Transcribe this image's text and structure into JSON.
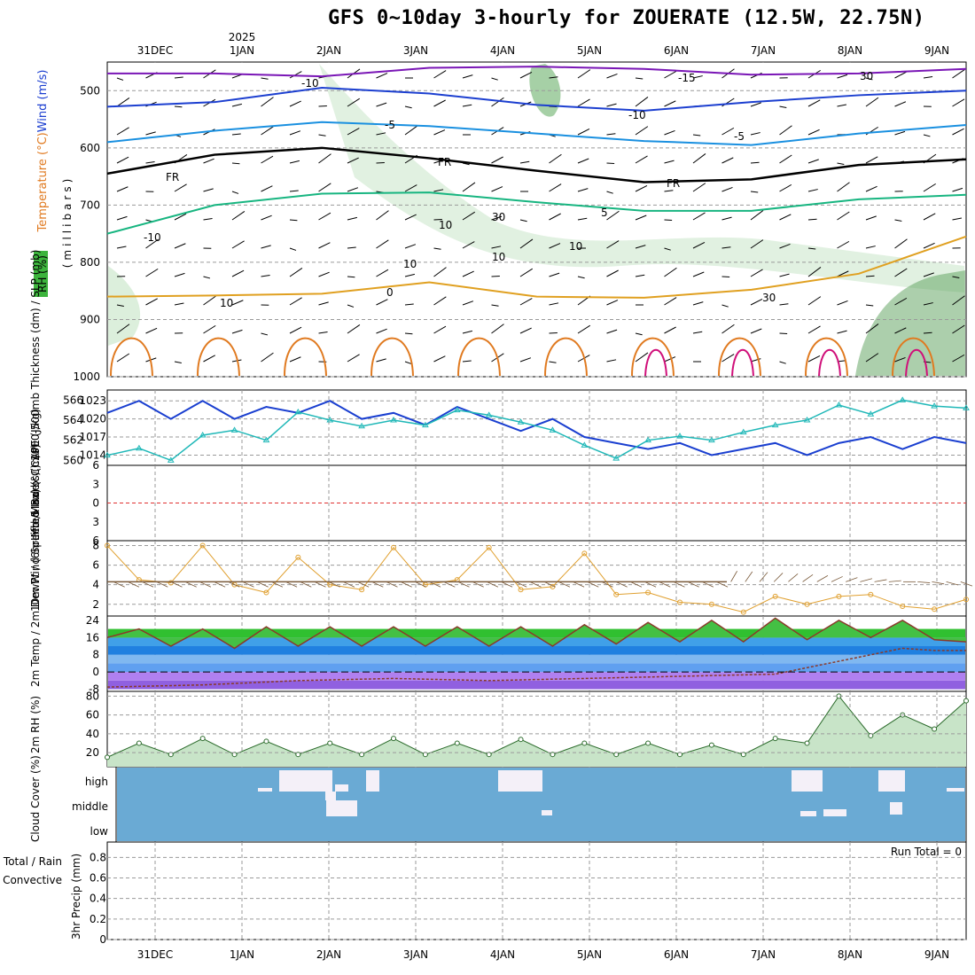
{
  "title": "GFS 0~10day 3-hourly for ZOUERATE (12.5W, 22.75N)",
  "year_label": "2025",
  "run_total": "Run Total = 0",
  "date_labels": [
    "31DEC",
    "1JAN",
    "2JAN",
    "3JAN",
    "4JAN",
    "5JAN",
    "6JAN",
    "7JAN",
    "8JAN",
    "9JAN"
  ],
  "colors": {
    "temp_minus15": "#7a16b6",
    "temp_minus10": "#1c3fd0",
    "temp_minus5": "#1a90e0",
    "temp_freezing": "#000000",
    "temp_5": "#17b580",
    "temp_10": "#e0a020",
    "temp_10b": "#e07a20",
    "temp_20": "#d0107a",
    "rh_fill": "#a8d8a8",
    "slp": "#1a3fd0",
    "thickness": "#20b8b8",
    "lifted_index": "#e03030",
    "wind_speed": "#e0a030",
    "cloud_bg": "#6aaad4",
    "cloud_fill": "#f4f0f8",
    "rh2m": "#20c020"
  },
  "chart_data": [
    {
      "type": "line",
      "panel": "upper_air",
      "ylabel_parts": [
        "Temperature (°C)",
        "Wind (m/s)",
        "RH (%)"
      ],
      "units": "(millibars)",
      "y_ticks": [
        500,
        600,
        700,
        800,
        900,
        1000
      ],
      "ylim": [
        450,
        1000
      ],
      "contour_labels": [
        "-15",
        "-10",
        "-10",
        "-5",
        "-5",
        "FR",
        "FR",
        "FR",
        "5",
        "10",
        "10",
        "10",
        "-10",
        "30",
        "30",
        "30",
        "10",
        "0",
        "10"
      ],
      "series": [
        {
          "name": "-15",
          "x": [
            0,
            10,
            20,
            30,
            40,
            50,
            60,
            70,
            80
          ],
          "y": [
            470,
            470,
            475,
            460,
            458,
            462,
            472,
            470,
            462
          ]
        },
        {
          "name": "-10",
          "x": [
            0,
            10,
            20,
            30,
            40,
            50,
            60,
            70,
            80
          ],
          "y": [
            528,
            520,
            495,
            505,
            525,
            535,
            520,
            508,
            500
          ]
        },
        {
          "name": "-5",
          "x": [
            0,
            10,
            20,
            30,
            40,
            50,
            60,
            70,
            80
          ],
          "y": [
            590,
            570,
            555,
            562,
            575,
            588,
            595,
            575,
            560
          ]
        },
        {
          "name": "FR",
          "x": [
            0,
            10,
            20,
            30,
            40,
            50,
            60,
            70,
            80
          ],
          "y": [
            645,
            612,
            600,
            618,
            640,
            660,
            655,
            630,
            620
          ]
        },
        {
          "name": "5",
          "x": [
            0,
            10,
            20,
            30,
            40,
            50,
            60,
            70,
            80
          ],
          "y": [
            750,
            700,
            680,
            678,
            695,
            710,
            710,
            690,
            682
          ]
        },
        {
          "name": "10",
          "x": [
            0,
            10,
            20,
            30,
            40,
            50,
            60,
            70,
            80
          ],
          "y": [
            860,
            858,
            855,
            835,
            860,
            862,
            848,
            820,
            755
          ]
        }
      ]
    },
    {
      "type": "line",
      "panel": "slp_thickness",
      "ylabel": "1000-500mb Thickness (dm) / SLP (mb)",
      "y_ticks_left": [
        560,
        562,
        564,
        566
      ],
      "y_ticks_right": [
        1014,
        1017,
        1020,
        1023
      ],
      "ylim_left": [
        559.5,
        567
      ],
      "series": [
        {
          "name": "SLP",
          "x": [
            0,
            3,
            6,
            9,
            12,
            15,
            18,
            21,
            24,
            27,
            30,
            33,
            36,
            39,
            42,
            45,
            48,
            51,
            54,
            57,
            60,
            63,
            66,
            69,
            72,
            75,
            78,
            81
          ],
          "y": [
            1021,
            1023,
            1020,
            1023,
            1020,
            1022,
            1021,
            1023,
            1020,
            1021,
            1019,
            1022,
            1020,
            1018,
            1020,
            1017,
            1016,
            1015,
            1016,
            1014,
            1015,
            1016,
            1014,
            1016,
            1017,
            1015,
            1017,
            1016
          ]
        },
        {
          "name": "Thickness",
          "x": [
            0,
            3,
            6,
            9,
            12,
            15,
            18,
            21,
            24,
            27,
            30,
            33,
            36,
            39,
            42,
            45,
            48,
            51,
            54,
            57,
            60,
            63,
            66,
            69,
            72,
            75,
            78,
            81
          ],
          "y": [
            560.5,
            561.2,
            560.0,
            562.5,
            563.0,
            562.0,
            564.8,
            564.0,
            563.4,
            564.0,
            563.5,
            565.0,
            564.5,
            563.8,
            563.0,
            561.5,
            560.2,
            562.0,
            562.4,
            562.0,
            562.8,
            563.5,
            564.0,
            565.5,
            564.6,
            566.0,
            565.4,
            565.2
          ]
        }
      ]
    },
    {
      "type": "line",
      "panel": "lifted_index_cape",
      "ylabel": "Lifted Index / CAPE (J/kg)",
      "y_ticks": [
        -6,
        -3,
        0,
        3,
        6
      ],
      "ylim": [
        -6,
        6
      ],
      "series": [
        {
          "name": "Lifted Index",
          "x": [
            0,
            81
          ],
          "y": [
            0,
            0
          ]
        }
      ]
    },
    {
      "type": "line",
      "panel": "wind10m",
      "ylabel": "10m Wind Speed & Barbs (m/s)",
      "y_ticks": [
        2,
        4,
        6,
        8
      ],
      "ylim": [
        0.8,
        8.5
      ],
      "series": [
        {
          "name": "Speed",
          "x": [
            0,
            3,
            6,
            9,
            12,
            15,
            18,
            21,
            24,
            27,
            30,
            33,
            36,
            39,
            42,
            45,
            48,
            51,
            54,
            57,
            60,
            63,
            66,
            69,
            72,
            75,
            78,
            81
          ],
          "y": [
            8.0,
            4.5,
            4.2,
            8.0,
            4.0,
            3.2,
            6.8,
            4.0,
            3.5,
            7.8,
            4.0,
            4.5,
            7.8,
            3.5,
            3.8,
            7.2,
            3.0,
            3.2,
            2.2,
            2.0,
            1.2,
            2.8,
            2.0,
            2.8,
            3.0,
            1.8,
            1.5,
            2.5
          ]
        },
        {
          "name": "Mean",
          "x": [
            0,
            81
          ],
          "y": [
            4.3,
            4.3
          ]
        }
      ]
    },
    {
      "type": "area",
      "panel": "temp2m",
      "ylabel": "2m Temp / 2m DewPt / (6hr Min/Max) (°C)",
      "y_ticks": [
        -8,
        0,
        8,
        16,
        24
      ],
      "ylim": [
        -9,
        26
      ],
      "series": [
        {
          "name": "2m Temp",
          "x": [
            0,
            3,
            6,
            9,
            12,
            15,
            18,
            21,
            24,
            27,
            30,
            33,
            36,
            39,
            42,
            45,
            48,
            51,
            54,
            57,
            60,
            63,
            66,
            69,
            72,
            75,
            78,
            81
          ],
          "y": [
            16,
            20,
            12,
            20,
            11,
            21,
            12,
            21,
            12,
            21,
            12,
            21,
            12,
            21,
            12,
            22,
            13,
            23,
            14,
            24,
            14,
            25,
            15,
            24,
            16,
            24,
            15,
            14
          ]
        },
        {
          "name": "2m DewPt",
          "x": [
            0,
            9,
            18,
            27,
            36,
            45,
            54,
            63,
            72,
            75,
            78,
            81
          ],
          "y": [
            -7,
            -6,
            -4,
            -3,
            -4,
            -3,
            -2,
            -1,
            8,
            11,
            10,
            10
          ]
        }
      ]
    },
    {
      "type": "area",
      "panel": "rh2m",
      "ylabel": "2m RH (%)",
      "y_ticks": [
        20,
        40,
        60,
        80
      ],
      "ylim": [
        5,
        85
      ],
      "series": [
        {
          "name": "2m RH",
          "x": [
            0,
            3,
            6,
            9,
            12,
            15,
            18,
            21,
            24,
            27,
            30,
            33,
            36,
            39,
            42,
            45,
            48,
            51,
            54,
            57,
            60,
            63,
            66,
            69,
            72,
            75,
            78,
            81
          ],
          "y": [
            15,
            30,
            18,
            35,
            18,
            32,
            18,
            30,
            18,
            35,
            18,
            30,
            18,
            34,
            18,
            30,
            18,
            30,
            18,
            28,
            18,
            35,
            30,
            80,
            38,
            60,
            45,
            75
          ]
        }
      ]
    },
    {
      "type": "heatmap",
      "panel": "cloud_cover",
      "ylabel": "Cloud Cover (%)",
      "y_categories": [
        "high",
        "middle",
        "low"
      ]
    },
    {
      "type": "bar",
      "panel": "precip",
      "ylabel": "3hr Precip (mm)",
      "legend": [
        "Total / Rain",
        "Convective"
      ],
      "y_ticks": [
        0,
        0.2,
        0.4,
        0.6,
        0.8
      ],
      "ylim": [
        0,
        0.95
      ],
      "values": []
    }
  ]
}
